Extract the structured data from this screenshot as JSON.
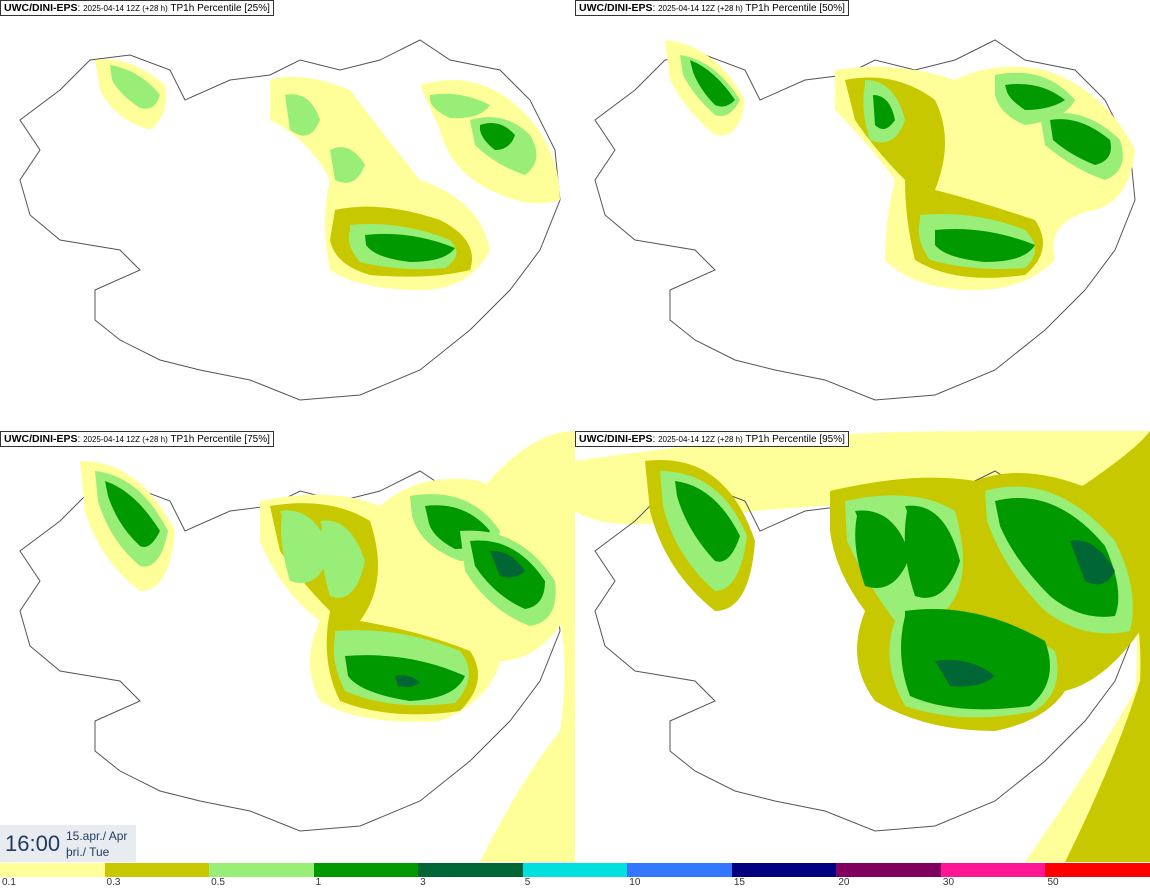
{
  "panels": [
    {
      "model": "UWC/DINI-EPS",
      "run": "2025-04-14 12Z (+28 h)",
      "title": "TP1h Percentile [25%]"
    },
    {
      "model": "UWC/DINI-EPS",
      "run": "2025-04-14 12Z (+28 h)",
      "title": "TP1h Percentile [50%]"
    },
    {
      "model": "UWC/DINI-EPS",
      "run": "2025-04-14 12Z (+28 h)",
      "title": "TP1h Percentile [75%]"
    },
    {
      "model": "UWC/DINI-EPS",
      "run": "2025-04-14 12Z (+28 h)",
      "title": "TP1h Percentile [95%]"
    }
  ],
  "time": {
    "hour": "16:00",
    "date_line1": "15.apr./ Apr",
    "date_line2": "þri./ Tue"
  },
  "scale": {
    "colors": [
      "#ffff99",
      "#c8c800",
      "#99ee77",
      "#009900",
      "#006633",
      "#00e0e0",
      "#3377ff",
      "#000080",
      "#800060",
      "#ff1493",
      "#ff0000"
    ],
    "ticks": [
      "0.1",
      "0.3",
      "0.5",
      "1",
      "3",
      "5",
      "10",
      "15",
      "20",
      "30",
      "50"
    ]
  },
  "colors": {
    "light_yellow": "#ffff99",
    "olive": "#c8c800",
    "light_green": "#99ee77",
    "green": "#009900",
    "dark_green": "#006633",
    "coast": "#555555"
  }
}
